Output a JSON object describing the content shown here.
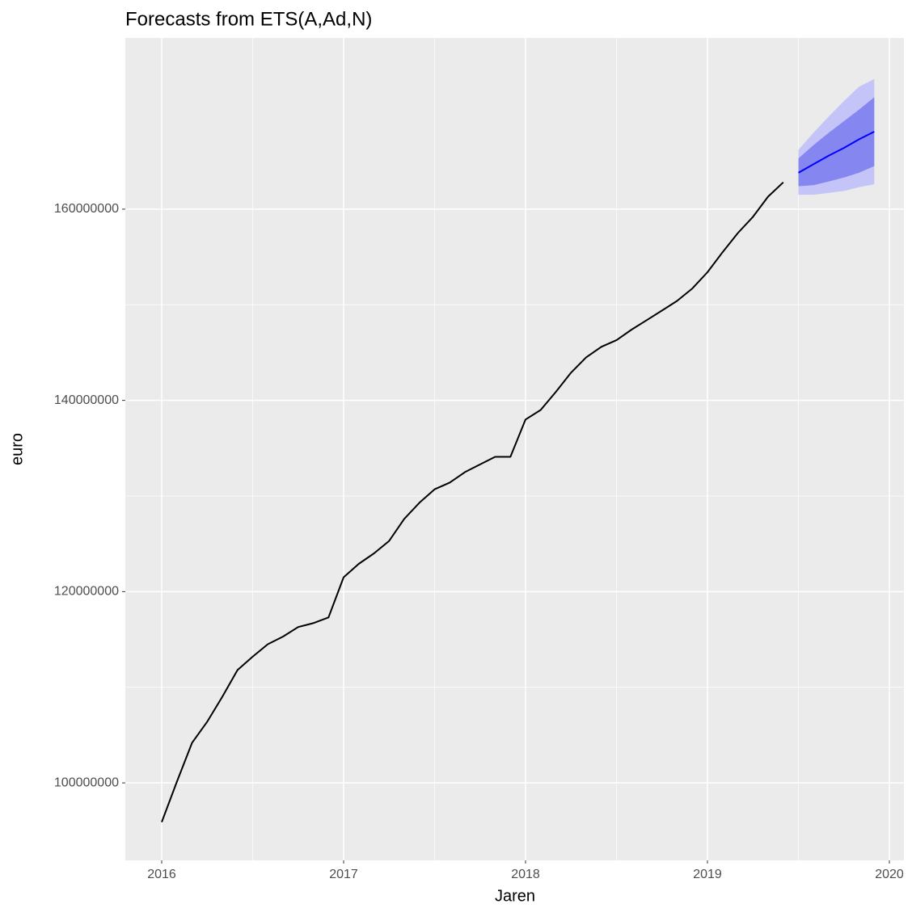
{
  "chart_data": {
    "type": "line",
    "title": "Forecasts from ETS(A,Ad,N)",
    "x_label": "Jaren",
    "y_label": "euro",
    "x": [
      2016,
      2016.083,
      2016.167,
      2016.25,
      2016.333,
      2016.417,
      2016.5,
      2016.583,
      2016.667,
      2016.75,
      2016.833,
      2016.917,
      2017,
      2017.083,
      2017.167,
      2017.25,
      2017.333,
      2017.417,
      2017.5,
      2017.583,
      2017.667,
      2017.75,
      2017.833,
      2017.917,
      2018,
      2018.083,
      2018.167,
      2018.25,
      2018.333,
      2018.417,
      2018.5,
      2018.583,
      2018.667,
      2018.75,
      2018.833,
      2018.917,
      2019,
      2019.083,
      2019.167,
      2019.25,
      2019.333,
      2019.417,
      2019.5,
      2019.583,
      2019.667,
      2019.75,
      2019.833,
      2019.917
    ],
    "series": [
      {
        "color": "#000000",
        "values": [
          95900000,
          100100000,
          104200000,
          106400000,
          109000000,
          111800000,
          113200000,
          114500000,
          115300000,
          116300000,
          116700000,
          117300000,
          121500000,
          122900000,
          124000000,
          125300000,
          127600000,
          129300000,
          130700000,
          131400000,
          132500000,
          133300000,
          134100000,
          134100000,
          138000000,
          139000000,
          140900000,
          142900000,
          144500000,
          145600000,
          146300000,
          147400000,
          148400000,
          149400000,
          150400000,
          151700000,
          153400000,
          155500000,
          157500000,
          159200000,
          161300000,
          162800000,
          null,
          null,
          null,
          null,
          null,
          null
        ]
      },
      {
        "color": "#0000ff",
        "values": [
          null,
          null,
          null,
          null,
          null,
          null,
          null,
          null,
          null,
          null,
          null,
          null,
          null,
          null,
          null,
          null,
          null,
          null,
          null,
          null,
          null,
          null,
          null,
          null,
          null,
          null,
          null,
          null,
          null,
          null,
          null,
          null,
          null,
          null,
          null,
          null,
          null,
          null,
          null,
          null,
          null,
          null,
          163800000,
          164700000,
          165600000,
          166400000,
          167300000,
          168100000
        ]
      }
    ],
    "bands": [
      {
        "color": "#c4c4f8",
        "lower": [
          161500000,
          161500000,
          161700000,
          161900000,
          162300000,
          162600000
        ],
        "upper": [
          166200000,
          168000000,
          169700000,
          171300000,
          172800000,
          173600000
        ],
        "start": 42
      },
      {
        "color": "#8686f0",
        "lower": [
          162400000,
          162500000,
          162900000,
          163300000,
          163800000,
          164500000
        ],
        "upper": [
          165300000,
          166700000,
          168000000,
          169200000,
          170400000,
          171700000
        ],
        "start": 42
      }
    ],
    "xlim": [
      2015.8,
      2020.08
    ],
    "xticks": [
      2016,
      2017,
      2018,
      2019,
      2020
    ],
    "ylim": [
      91900000,
      177900000
    ],
    "yticks": [
      100000000,
      120000000,
      140000000,
      160000000
    ],
    "grid": true
  }
}
